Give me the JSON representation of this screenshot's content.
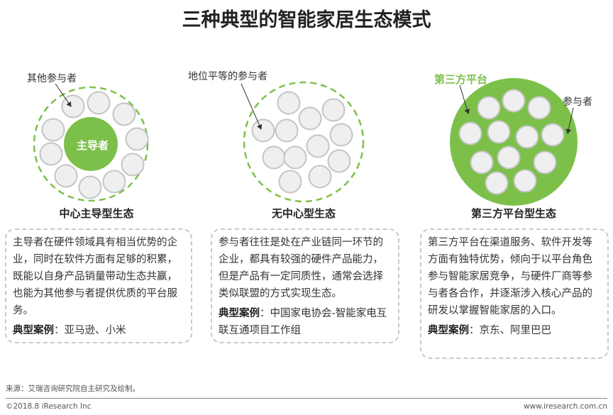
{
  "title": "三种典型的智能家居生态模式",
  "colors": {
    "accent": "#7cc04a",
    "small_circle_fill": "#efefef",
    "small_circle_stroke": "#c4c4c4"
  },
  "models": [
    {
      "caption": "中心主导型生态",
      "center_label": "主导者",
      "callout": "其他参与者",
      "description": "主导者在硬件领域具有相当优势的企业，同时在软件方面有足够的积累，既能以自身产品销量带动生态共赢，也能为其他参与者提供优质的平台服务。",
      "case_label": "典型案例",
      "case_value": "：亚马逊、小米"
    },
    {
      "caption": "无中心型生态",
      "callout": "地位平等的参与者",
      "description": "参与者往往是处在产业链同一环节的企业，都具有较强的硬件产品能力，但是产品有一定同质性，通常会选择类似联盟的方式实现生态。",
      "case_label": "典型案例",
      "case_value": "：中国家电协会-智能家电互联互通项目工作组"
    },
    {
      "caption": "第三方平台型生态",
      "callout": "第三方平台",
      "callout2": "参与者",
      "description": "第三方平台在渠道服务、软件开发等方面有独特优势，倾向于以平台角色参与智能家居竞争，与硬件厂商等参与者各合作，并逐渐涉入核心产品的研发以掌握智能家居的入口。",
      "case_label": "典型案例",
      "case_value": "：京东、阿里巴巴"
    }
  ],
  "footer": {
    "source": "来源：艾瑞咨询研究院自主研究及绘制。",
    "copyright": "©2018.8 iResearch Inc",
    "website": "www.iresearch.com.cn"
  }
}
